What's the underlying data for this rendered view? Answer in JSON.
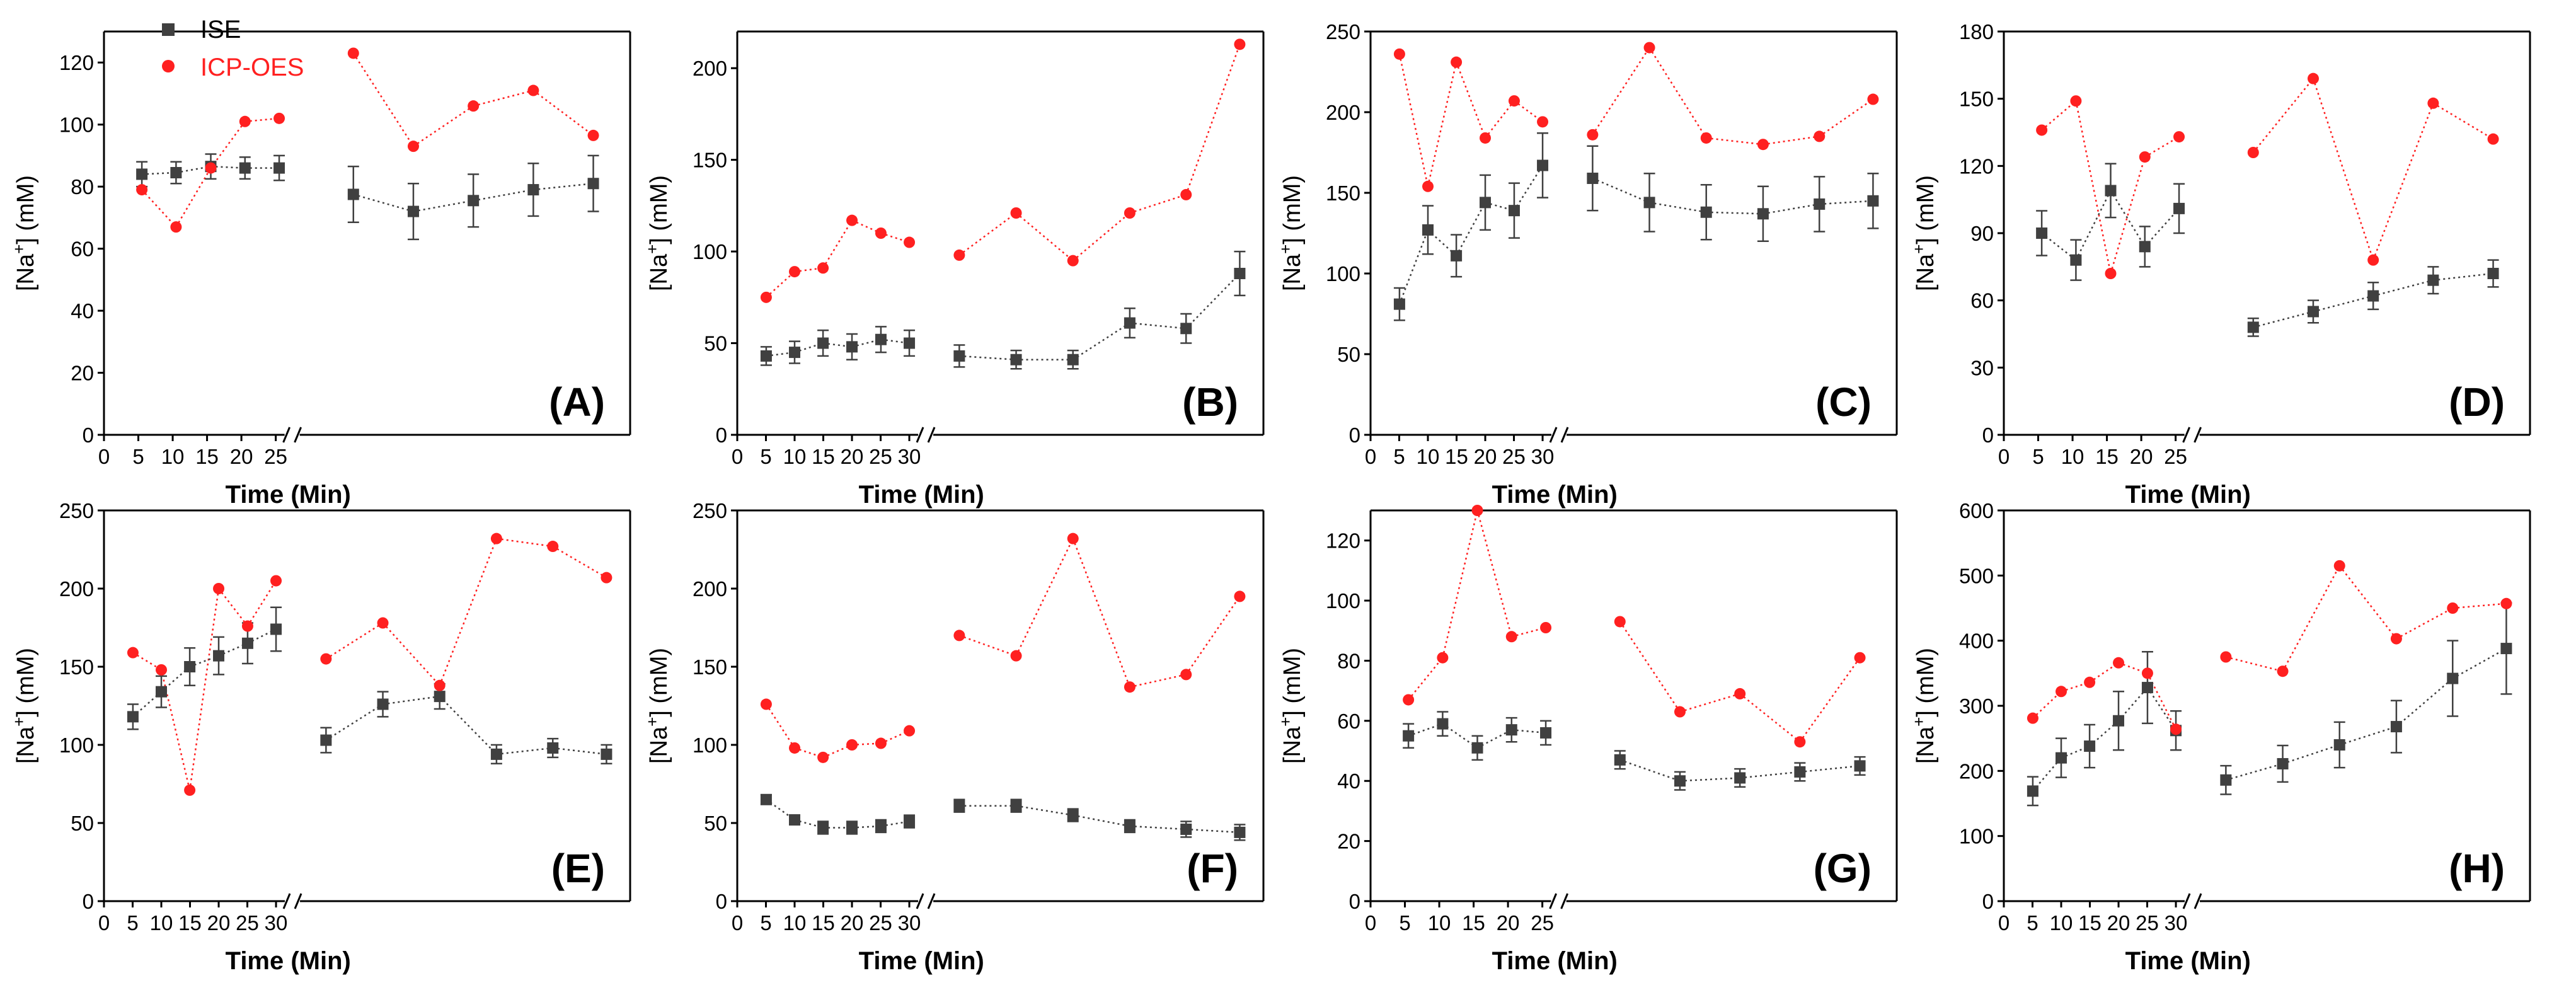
{
  "legend": {
    "ise_label": "ISE",
    "icp_label": "ICP-OES",
    "ise_color": "#404040",
    "icp_color": "#ff2020",
    "placement": "top-left of panel A"
  },
  "chart_data": [
    {
      "type": "scatter",
      "panel_label": "(A)",
      "xlabel": "Time (Min)",
      "ylabel": "[Na+] (mM)",
      "ylabel_parts": [
        "[Na",
        "+",
        "] (mM)"
      ],
      "xticks": [
        0,
        5,
        10,
        15,
        20,
        25
      ],
      "ylim": [
        0,
        130
      ],
      "yticks": [
        0,
        20,
        40,
        60,
        80,
        100,
        120
      ],
      "axis_break": true,
      "x": [
        5,
        10,
        15,
        20,
        25,
        30,
        35,
        40,
        45,
        50
      ],
      "series": [
        {
          "name": "ISE",
          "values": [
            84,
            84.5,
            86.5,
            86,
            86,
            77.5,
            72,
            75.5,
            79,
            81
          ],
          "errors": [
            4,
            3.5,
            4,
            3.5,
            4,
            9,
            9,
            8.5,
            8.5,
            9
          ]
        },
        {
          "name": "ICP-OES",
          "values": [
            79,
            67,
            86,
            101,
            102,
            123,
            93,
            106,
            111,
            96.5
          ]
        }
      ]
    },
    {
      "type": "scatter",
      "panel_label": "(B)",
      "xlabel": "Time (Min)",
      "ylabel": "[Na+] (mM)",
      "ylabel_parts": [
        "[Na",
        "+",
        "] (mM)"
      ],
      "xticks": [
        0,
        5,
        10,
        15,
        20,
        25,
        30
      ],
      "ylim": [
        0,
        220
      ],
      "yticks": [
        0,
        50,
        100,
        150,
        200
      ],
      "axis_break": true,
      "x": [
        5,
        10,
        15,
        20,
        25,
        30,
        35,
        40,
        45,
        50,
        55,
        60
      ],
      "series": [
        {
          "name": "ISE",
          "values": [
            43,
            45,
            50,
            48,
            52,
            50,
            43,
            41,
            41,
            61,
            58,
            88
          ],
          "errors": [
            5,
            6,
            7,
            7,
            7,
            7,
            6,
            5,
            5,
            8,
            8,
            12
          ]
        },
        {
          "name": "ICP-OES",
          "values": [
            75,
            89,
            91,
            117,
            110,
            105,
            98,
            121,
            95,
            121,
            131,
            213
          ]
        }
      ]
    },
    {
      "type": "scatter",
      "panel_label": "(C)",
      "xlabel": "Time (Min)",
      "ylabel": "[Na+] (mM)",
      "ylabel_parts": [
        "[Na",
        "+",
        "] (mM)"
      ],
      "xticks": [
        0,
        5,
        10,
        15,
        20,
        25,
        30
      ],
      "ylim": [
        0,
        250
      ],
      "yticks": [
        0,
        50,
        100,
        150,
        200,
        250
      ],
      "axis_break": true,
      "x": [
        5,
        10,
        15,
        20,
        25,
        30,
        35,
        40,
        45,
        50,
        55,
        60
      ],
      "series": [
        {
          "name": "ISE",
          "values": [
            81,
            127,
            111,
            144,
            139,
            167,
            159,
            144,
            138,
            137,
            143,
            145
          ],
          "errors": [
            10,
            15,
            13,
            17,
            17,
            20,
            20,
            18,
            17,
            17,
            17,
            17
          ]
        },
        {
          "name": "ICP-OES",
          "values": [
            236,
            154,
            231,
            184,
            207,
            194,
            186,
            240,
            184,
            180,
            185,
            208
          ]
        }
      ]
    },
    {
      "type": "scatter",
      "panel_label": "(D)",
      "xlabel": "Time (Min)",
      "ylabel": "[Na+] (mM)",
      "ylabel_parts": [
        "[Na",
        "+",
        "] (mM)"
      ],
      "xticks": [
        0,
        5,
        10,
        15,
        20,
        25
      ],
      "ylim": [
        0,
        180
      ],
      "yticks": [
        0,
        30,
        60,
        90,
        120,
        150,
        180
      ],
      "axis_break": true,
      "x": [
        5,
        10,
        15,
        20,
        25,
        30,
        35,
        40,
        45,
        50
      ],
      "series": [
        {
          "name": "ISE",
          "values": [
            90,
            78,
            109,
            84,
            101,
            48,
            55,
            62,
            69,
            72
          ],
          "errors": [
            10,
            9,
            12,
            9,
            11,
            4,
            5,
            6,
            6,
            6
          ]
        },
        {
          "name": "ICP-OES",
          "values": [
            136,
            149,
            72,
            124,
            133,
            126,
            159,
            78,
            148,
            132
          ]
        }
      ]
    },
    {
      "type": "scatter",
      "panel_label": "(E)",
      "xlabel": "Time (Min)",
      "ylabel": "[Na+] (mM)",
      "ylabel_parts": [
        "[Na",
        "+",
        "] (mM)"
      ],
      "xticks": [
        0,
        5,
        10,
        15,
        20,
        25,
        30
      ],
      "ylim": [
        0,
        250
      ],
      "yticks": [
        0,
        50,
        100,
        150,
        200,
        250
      ],
      "axis_break": true,
      "x": [
        5,
        10,
        15,
        20,
        25,
        30,
        35,
        40,
        45,
        50,
        55,
        60
      ],
      "series": [
        {
          "name": "ISE",
          "values": [
            118,
            134,
            150,
            157,
            165,
            174,
            103,
            126,
            131,
            94,
            98,
            94
          ],
          "errors": [
            8,
            10,
            12,
            12,
            13,
            14,
            8,
            8,
            8,
            6,
            6,
            6
          ]
        },
        {
          "name": "ICP-OES",
          "values": [
            159,
            148,
            71,
            200,
            176,
            205,
            155,
            178,
            138,
            232,
            227,
            207
          ]
        }
      ]
    },
    {
      "type": "scatter",
      "panel_label": "(F)",
      "xlabel": "Time (Min)",
      "ylabel": "[Na+] (mM)",
      "ylabel_parts": [
        "[Na",
        "+",
        "] (mM)"
      ],
      "xticks": [
        0,
        5,
        10,
        15,
        20,
        25,
        30
      ],
      "ylim": [
        0,
        250
      ],
      "yticks": [
        0,
        50,
        100,
        150,
        200,
        250
      ],
      "axis_break": true,
      "x": [
        5,
        10,
        15,
        20,
        25,
        30,
        35,
        40,
        45,
        50,
        55,
        60
      ],
      "series": [
        {
          "name": "ISE",
          "values": [
            65,
            52,
            47,
            47,
            48,
            51,
            61,
            61,
            55,
            48,
            46,
            44
          ],
          "errors": [
            3,
            3,
            4,
            4,
            4,
            4,
            4,
            4,
            4,
            4,
            5,
            5
          ]
        },
        {
          "name": "ICP-OES",
          "values": [
            126,
            98,
            92,
            100,
            101,
            109,
            170,
            157,
            232,
            137,
            145,
            195
          ]
        }
      ]
    },
    {
      "type": "scatter",
      "panel_label": "(G)",
      "xlabel": "Time (Min)",
      "ylabel": "[Na+] (mM)",
      "ylabel_parts": [
        "[Na",
        "+",
        "] (mM)"
      ],
      "xticks": [
        0,
        5,
        10,
        15,
        20,
        25
      ],
      "ylim": [
        0,
        130
      ],
      "yticks": [
        0,
        20,
        40,
        60,
        80,
        100,
        120
      ],
      "axis_break": true,
      "x": [
        5,
        10,
        15,
        20,
        25,
        30,
        35,
        40,
        45,
        50
      ],
      "series": [
        {
          "name": "ISE",
          "values": [
            55,
            59,
            51,
            57,
            56,
            47,
            40,
            41,
            43,
            45
          ],
          "errors": [
            4,
            4,
            4,
            4,
            4,
            3,
            3,
            3,
            3,
            3
          ]
        },
        {
          "name": "ICP-OES",
          "values": [
            67,
            81,
            130,
            88,
            91,
            93,
            63,
            69,
            53,
            81
          ]
        }
      ]
    },
    {
      "type": "scatter",
      "panel_label": "(H)",
      "xlabel": "Time (Min)",
      "ylabel": "[Na+] (mM)",
      "ylabel_parts": [
        "[Na",
        "+",
        "] (mM)"
      ],
      "xticks": [
        0,
        5,
        10,
        15,
        20,
        25,
        30
      ],
      "ylim": [
        0,
        600
      ],
      "yticks": [
        0,
        100,
        200,
        300,
        400,
        500,
        600
      ],
      "axis_break": true,
      "x": [
        5,
        10,
        15,
        20,
        25,
        30,
        35,
        40,
        45,
        50,
        55,
        60
      ],
      "series": [
        {
          "name": "ISE",
          "values": [
            169,
            220,
            238,
            277,
            328,
            262,
            186,
            211,
            240,
            268,
            342,
            388
          ],
          "errors": [
            22,
            30,
            33,
            45,
            55,
            30,
            22,
            28,
            35,
            40,
            58,
            70
          ]
        },
        {
          "name": "ICP-OES",
          "values": [
            281,
            322,
            336,
            366,
            350,
            264,
            375,
            353,
            515,
            403,
            450,
            457
          ]
        }
      ]
    }
  ]
}
